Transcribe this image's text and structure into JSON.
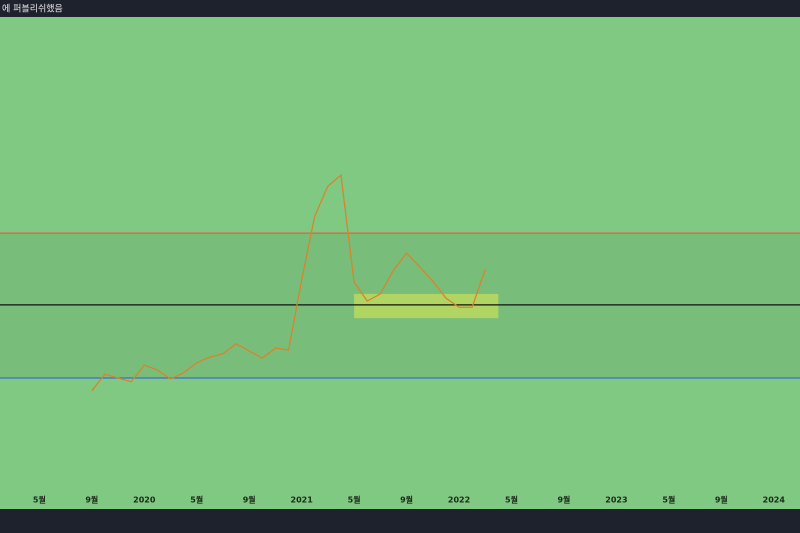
{
  "header": {
    "title": "에 퍼블리쉬했음"
  },
  "chart_data": {
    "type": "line",
    "x": [
      "2019-09",
      "2019-10",
      "2019-11",
      "2019-12",
      "2020-01",
      "2020-02",
      "2020-03",
      "2020-04",
      "2020-05",
      "2020-06",
      "2020-07",
      "2020-08",
      "2020-09",
      "2020-10",
      "2020-11",
      "2020-12",
      "2021-01",
      "2021-02",
      "2021-03",
      "2021-04",
      "2021-05",
      "2021-06",
      "2021-07",
      "2021-08",
      "2021-09",
      "2021-10",
      "2021-11",
      "2021-12",
      "2022-01",
      "2022-02",
      "2022-03"
    ],
    "series": [
      {
        "color": "#d8842c",
        "values": [
          21.3,
          24.8,
          24.0,
          23.2,
          26.7,
          25.7,
          23.8,
          25.1,
          27.2,
          28.4,
          29.1,
          31.2,
          29.7,
          28.2,
          30.3,
          29.9,
          44.6,
          58.1,
          64.4,
          66.7,
          44.2,
          40.2,
          41.7,
          46.7,
          50.3,
          47.4,
          44.4,
          40.8,
          38.9,
          38.9,
          46.9
        ]
      }
    ],
    "levels": [
      {
        "value": 54.5,
        "color": "#e0643c"
      },
      {
        "value": 39.4,
        "color": "#111111"
      },
      {
        "value": 24.0,
        "color": "#3a6fd0"
      }
    ],
    "box": {
      "x": [
        "2021-05",
        "2022-04"
      ],
      "y": [
        36.6,
        41.7
      ],
      "color": "#c4dc5c"
    },
    "xlim": [
      "2019-02",
      "2024-03"
    ],
    "ylim": [
      0,
      100
    ],
    "xticks": [
      {
        "value": "2019-05",
        "label": "5월"
      },
      {
        "value": "2019-09",
        "label": "9월"
      },
      {
        "value": "2020-01",
        "label": "2020"
      },
      {
        "value": "2020-05",
        "label": "5월"
      },
      {
        "value": "2020-09",
        "label": "9월"
      },
      {
        "value": "2021-01",
        "label": "2021"
      },
      {
        "value": "2021-05",
        "label": "5월"
      },
      {
        "value": "2021-09",
        "label": "9월"
      },
      {
        "value": "2022-01",
        "label": "2022"
      },
      {
        "value": "2022-05",
        "label": "5월"
      },
      {
        "value": "2022-09",
        "label": "9월"
      },
      {
        "value": "2023-01",
        "label": "2023"
      },
      {
        "value": "2023-05",
        "label": "5월"
      },
      {
        "value": "2023-09",
        "label": "9월"
      },
      {
        "value": "2024-01",
        "label": "2024"
      }
    ]
  }
}
